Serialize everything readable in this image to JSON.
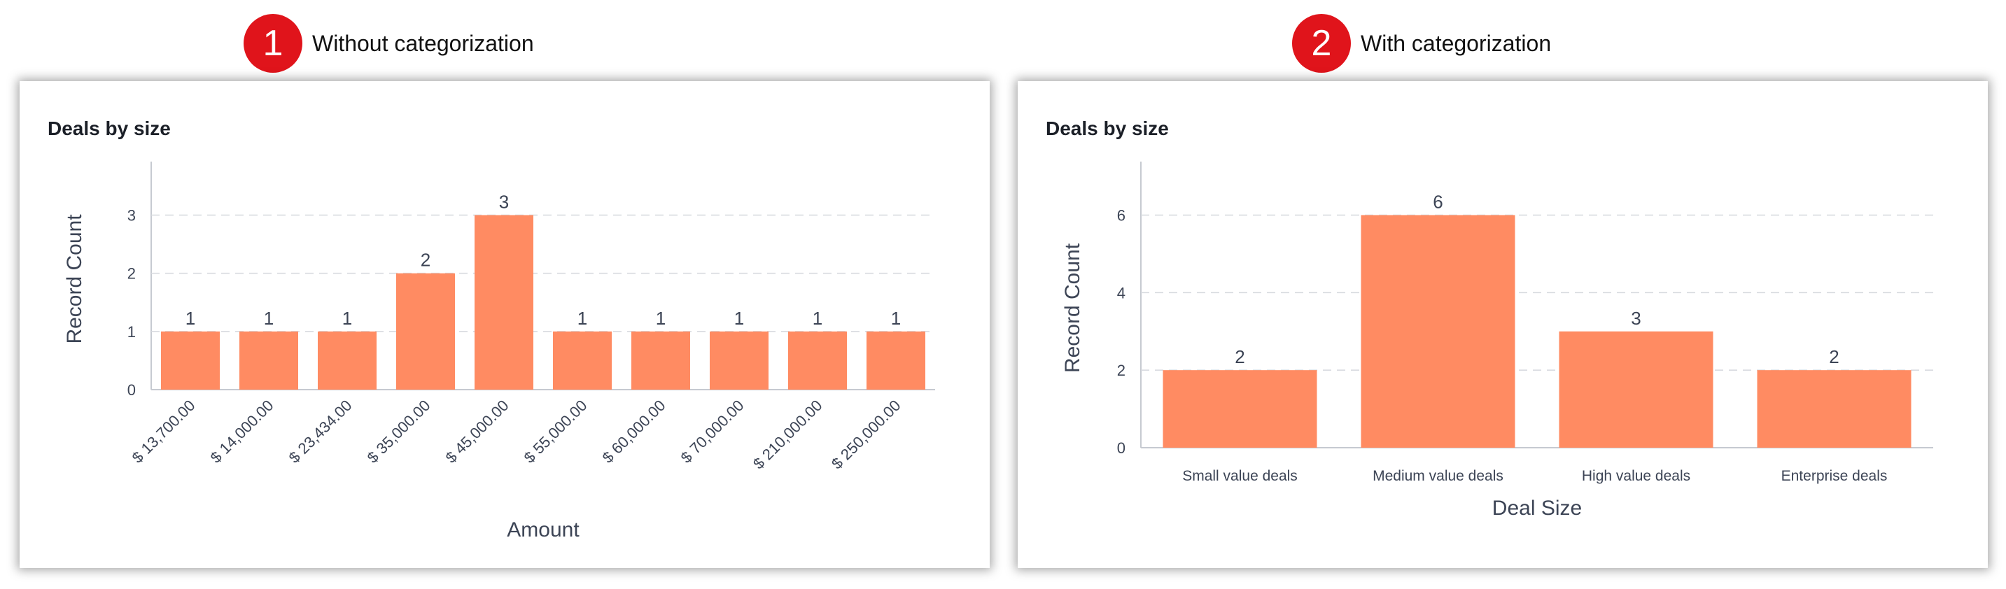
{
  "steps": [
    {
      "number": "1",
      "label": "Without categorization"
    },
    {
      "number": "2",
      "label": "With categorization"
    }
  ],
  "colors": {
    "bar": "#ff8b62",
    "badge": "#e0141b",
    "grid": "#d5d8dd",
    "axis": "#c6cad1",
    "text": "#3c4455"
  },
  "chart_data": [
    {
      "type": "bar",
      "title": "Deals by size",
      "xlabel": "Amount",
      "ylabel": "Record Count",
      "categories": [
        "$ 13,700.00",
        "$ 14,000.00",
        "$ 23,434.00",
        "$ 35,000.00",
        "$ 45,000.00",
        "$ 55,000.00",
        "$ 60,000.00",
        "$ 70,000.00",
        "$ 210,000.00",
        "$ 250,000.00"
      ],
      "values": [
        1,
        1,
        1,
        2,
        3,
        1,
        1,
        1,
        1,
        1
      ],
      "yticks": [
        0,
        1,
        2,
        3
      ],
      "ylim": [
        0,
        3.8
      ],
      "grid": true,
      "tick_rotation": -45
    },
    {
      "type": "bar",
      "title": "Deals by size",
      "xlabel": "Deal Size",
      "ylabel": "Record Count",
      "categories": [
        "Small value deals",
        "Medium value deals",
        "High value deals",
        "Enterprise deals"
      ],
      "values": [
        2,
        6,
        3,
        2
      ],
      "yticks": [
        0,
        2,
        4,
        6
      ],
      "ylim": [
        0,
        7.2
      ],
      "grid": true,
      "tick_rotation": 0
    }
  ]
}
